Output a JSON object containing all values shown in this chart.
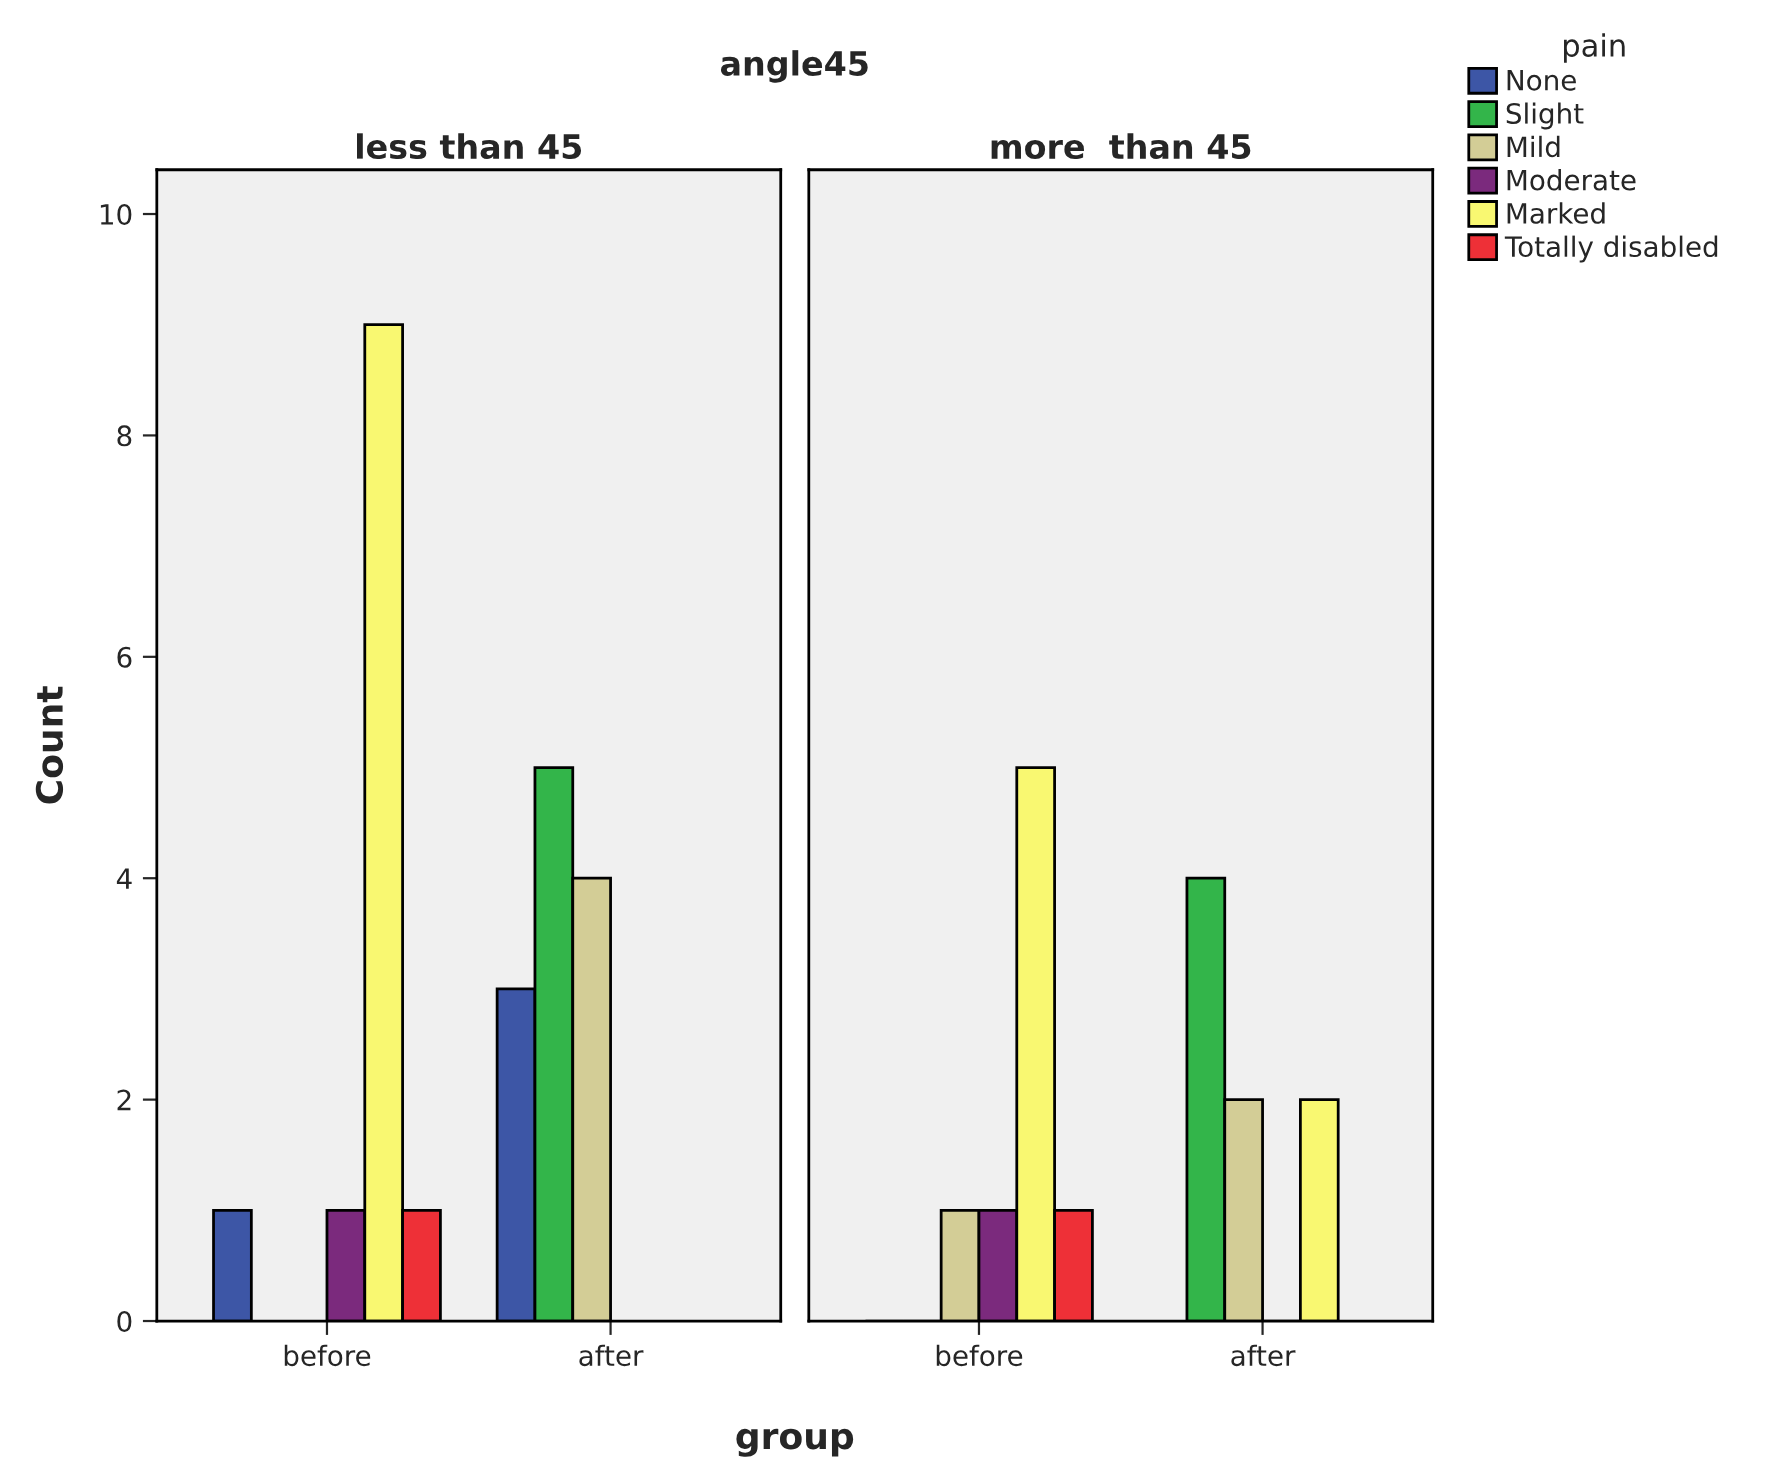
{
  "chart_data": [
    {
      "type": "bar",
      "title": "less than 45",
      "annotations": [
        "angle45"
      ],
      "xlabel": "group",
      "ylabel": "Count",
      "categories": [
        "before",
        "after"
      ],
      "ylim": [
        0,
        10.4
      ],
      "yticks": [
        0,
        2,
        4,
        6,
        8,
        10
      ],
      "grid": false,
      "legend": "right",
      "legend_title": "pain",
      "series": [
        {
          "name": "None",
          "color": "#3d56a6",
          "values": [
            1,
            3
          ]
        },
        {
          "name": "Slight",
          "color": "#33b54a",
          "values": [
            null,
            5
          ]
        },
        {
          "name": "Mild",
          "color": "#d3cd96",
          "values": [
            null,
            4
          ]
        },
        {
          "name": "Moderate",
          "color": "#7b2a7d",
          "values": [
            1,
            null
          ]
        },
        {
          "name": "Marked",
          "color": "#f9f871",
          "values": [
            9,
            null
          ]
        },
        {
          "name": "Totally disabled",
          "color": "#ee3037",
          "values": [
            1,
            null
          ]
        }
      ]
    },
    {
      "type": "bar",
      "title": "more  than 45",
      "categories": [
        "before",
        "after"
      ],
      "ylim": [
        0,
        10.4
      ],
      "yticks": [
        0,
        2,
        4,
        6,
        8,
        10
      ],
      "tick_labels": "x",
      "grid": false,
      "series": [
        {
          "color": "#3d56a6",
          "values": [
            0,
            null
          ]
        },
        {
          "color": "#33b54a",
          "values": [
            0,
            4
          ]
        },
        {
          "color": "#d3cd96",
          "values": [
            1,
            2
          ]
        },
        {
          "color": "#7b2a7d",
          "values": [
            1,
            0
          ]
        },
        {
          "color": "#f9f871",
          "values": [
            5,
            2
          ]
        },
        {
          "color": "#ee3037",
          "values": [
            1,
            null
          ]
        }
      ]
    }
  ]
}
